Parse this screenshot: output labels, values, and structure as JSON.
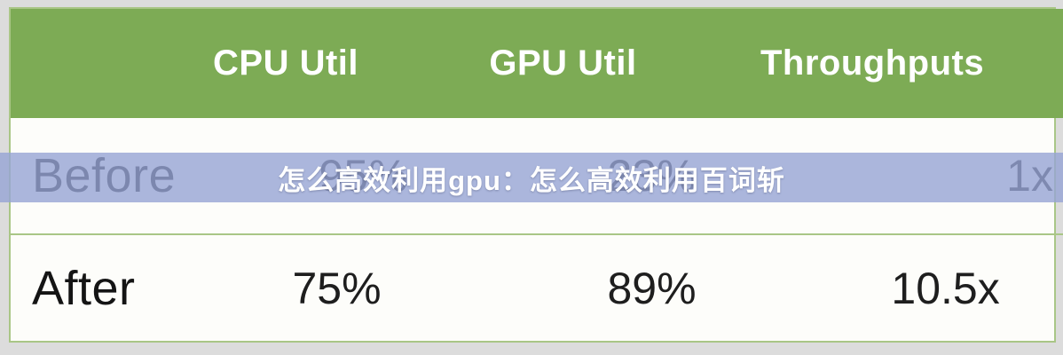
{
  "overlay": {
    "title": "怎么高效利用gpu：怎么高效利用百词斩",
    "band_color": "#b7c1de",
    "text_color": "#ffffff"
  },
  "table": {
    "header": {
      "bg_color": "#7dab55",
      "text_color": "#ffffff",
      "labels": [
        "CPU Util",
        "GPU Util",
        "Throughputs"
      ]
    },
    "rows": [
      {
        "label": "Before",
        "values": [
          "95%",
          "23%",
          "1x"
        ],
        "highlighted": true
      },
      {
        "label": "After",
        "values": [
          "75%",
          "89%",
          "10.5x"
        ],
        "highlighted": false
      }
    ],
    "border_color": "#a9c686",
    "background_color": "#fdfdfa"
  },
  "page": {
    "background_color": "#dcdcdc"
  },
  "chart_data": {
    "type": "table",
    "title": "",
    "columns": [
      "",
      "CPU Util",
      "GPU Util",
      "Throughputs"
    ],
    "rows": [
      [
        "Before",
        "95%",
        "23%",
        "1x"
      ],
      [
        "After",
        "75%",
        "89%",
        "10.5x"
      ]
    ]
  }
}
